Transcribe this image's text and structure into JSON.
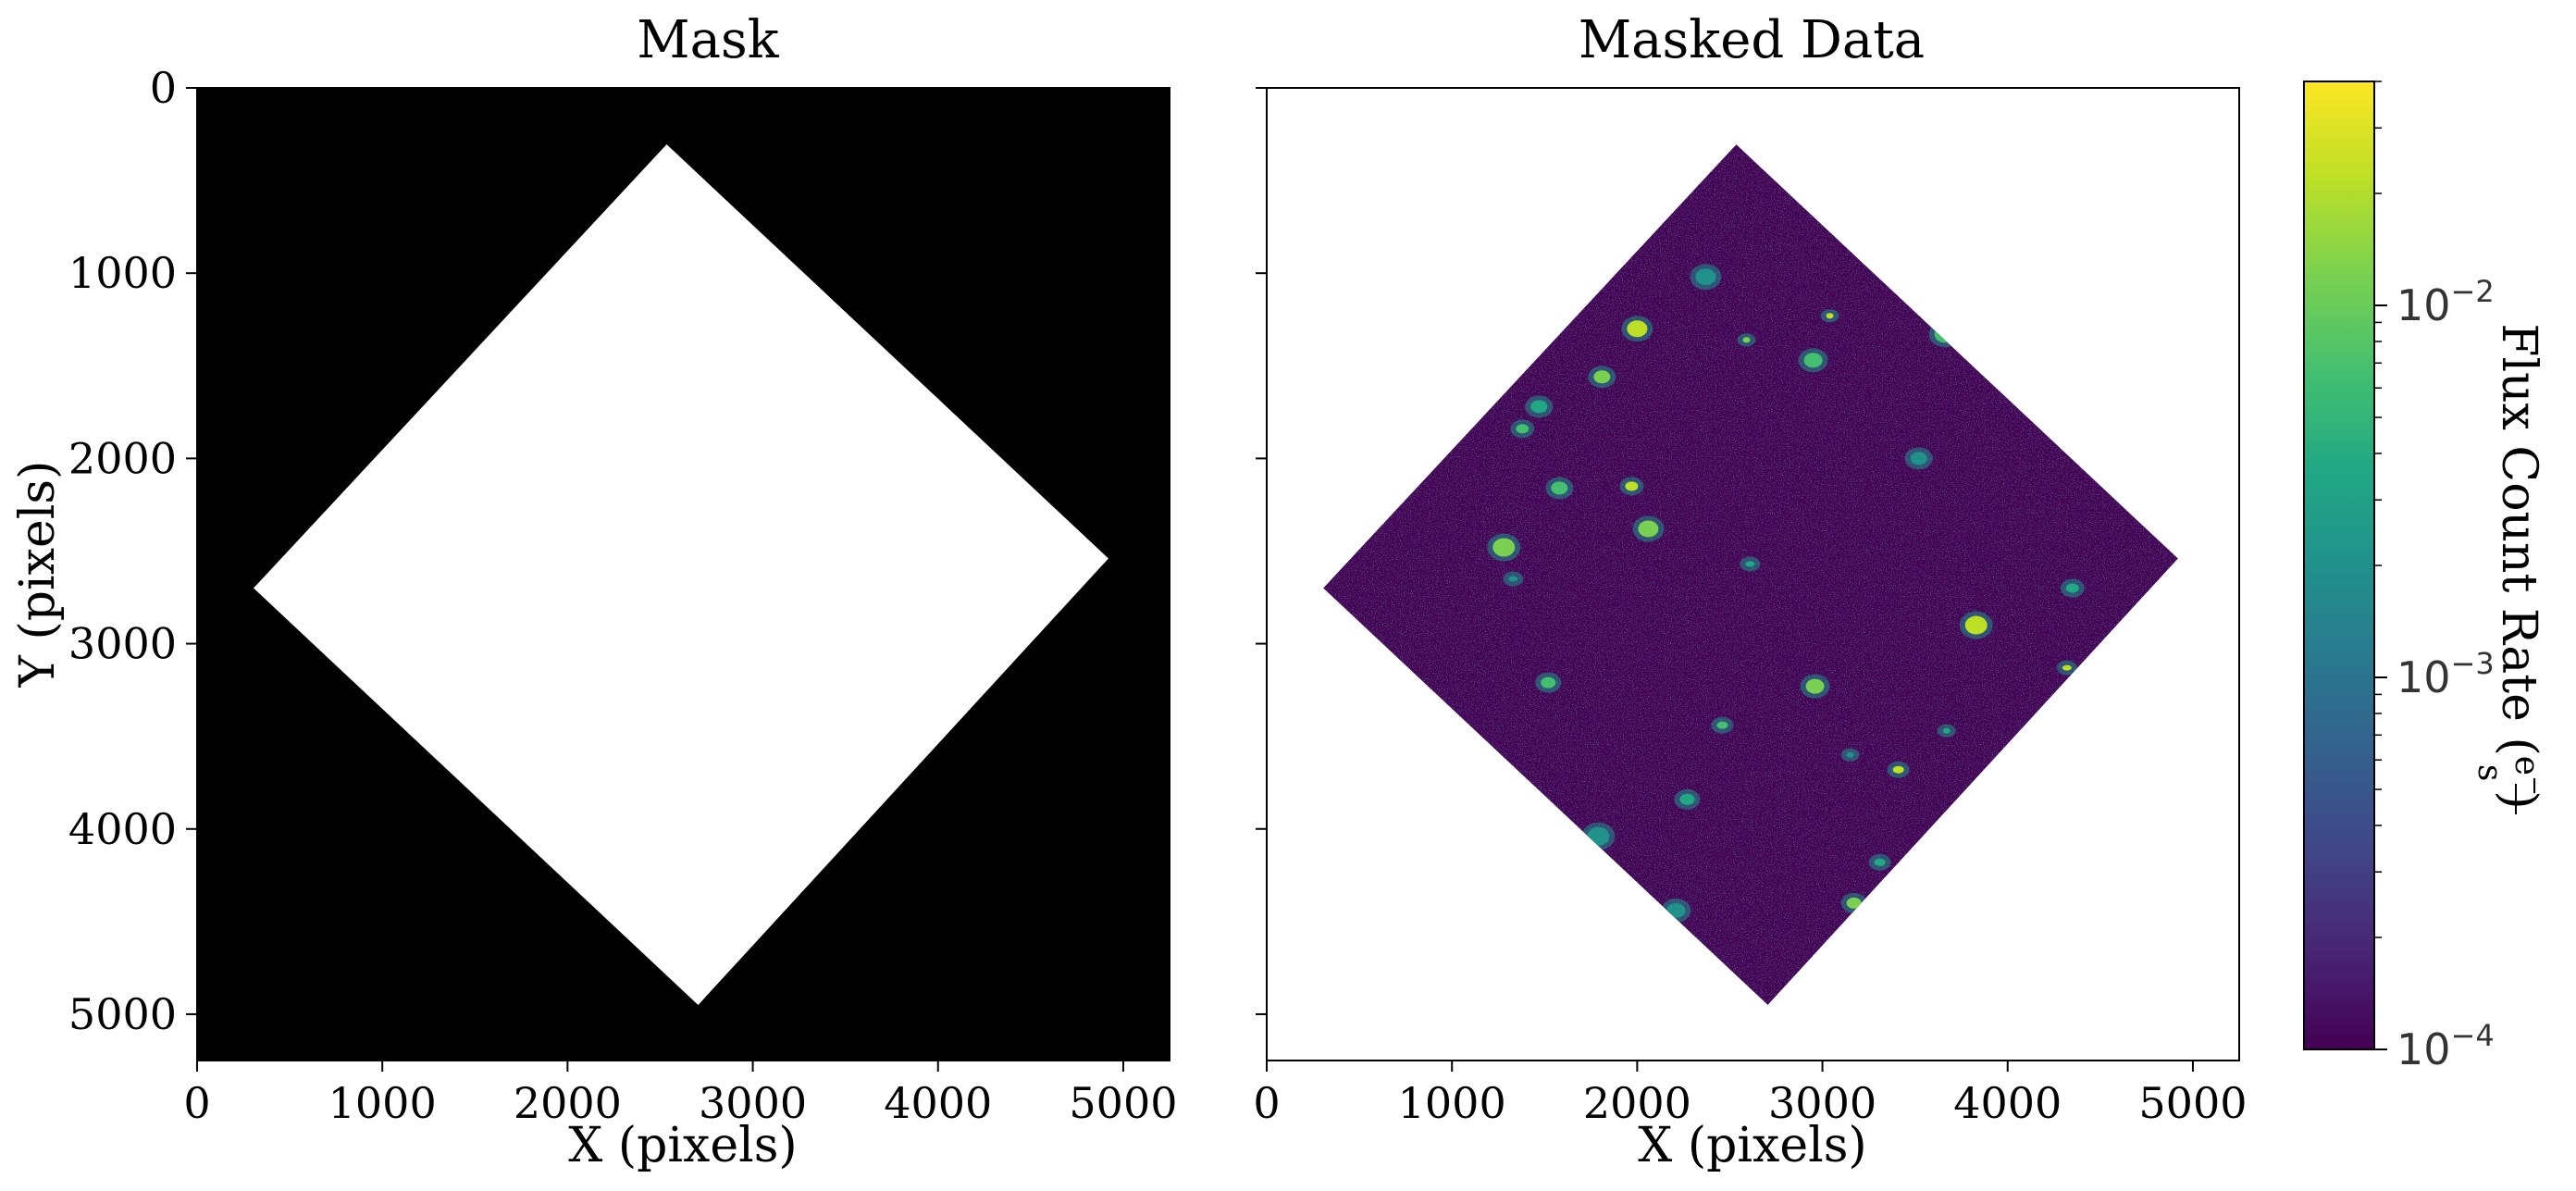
{
  "chart_data": [
    {
      "type": "heatmap",
      "panel": "mask",
      "title": "Mask",
      "xlabel": "X (pixels)",
      "ylabel": "Y (pixels)",
      "xlim": [
        0,
        5250
      ],
      "ylim": [
        5250,
        0
      ],
      "xticks": [
        "0",
        "1000",
        "2000",
        "3000",
        "4000",
        "5000"
      ],
      "yticks": [
        "0",
        "1000",
        "2000",
        "3000",
        "4000",
        "5000"
      ],
      "colormap": "gray",
      "background_color": "#000000",
      "region_color": "#ffffff",
      "region_vertices": [
        [
          2535,
          305
        ],
        [
          4920,
          2540
        ],
        [
          2705,
          4950
        ],
        [
          305,
          2700
        ]
      ]
    },
    {
      "type": "heatmap",
      "panel": "masked-data",
      "title": "Masked Data",
      "xlabel": "X (pixels)",
      "ylabel": "",
      "xlim": [
        0,
        5250
      ],
      "ylim": [
        5250,
        0
      ],
      "xticks": [
        "0",
        "1000",
        "2000",
        "3000",
        "4000",
        "5000"
      ],
      "yticks_labeled": false,
      "colormap": "viridis",
      "color_scale": "log",
      "color_range": [
        0.0001,
        0.04
      ],
      "colorbar_label": "Flux Count Rate (",
      "colorbar_unit_num": "e",
      "colorbar_unit_sup": "−",
      "colorbar_unit_den": "s",
      "colorbar_label_end": ")",
      "colorbar_ticks": [
        {
          "base": "10",
          "exp": "−2",
          "value": 0.01
        },
        {
          "base": "10",
          "exp": "−3",
          "value": 0.001
        },
        {
          "base": "10",
          "exp": "−4",
          "value": 0.0001
        }
      ],
      "region_vertices": [
        [
          2535,
          305
        ],
        [
          4920,
          2540
        ],
        [
          2705,
          4950
        ],
        [
          305,
          2700
        ]
      ],
      "bright_sources": [
        [
          2590,
          1360
        ],
        [
          3660,
          1330
        ],
        [
          1470,
          1720
        ],
        [
          1970,
          2150
        ],
        [
          1330,
          2650
        ],
        [
          1280,
          2480
        ],
        [
          2950,
          1470
        ],
        [
          2270,
          3840
        ],
        [
          3410,
          3680
        ],
        [
          3150,
          3600
        ],
        [
          2060,
          2380
        ],
        [
          1580,
          2160
        ],
        [
          4350,
          2700
        ],
        [
          4320,
          3130
        ],
        [
          1790,
          4040
        ],
        [
          2960,
          3230
        ],
        [
          1520,
          3210
        ],
        [
          3310,
          4180
        ],
        [
          3040,
          1230
        ],
        [
          2370,
          1020
        ],
        [
          1810,
          1560
        ],
        [
          1380,
          1840
        ],
        [
          2610,
          2570
        ],
        [
          3830,
          2900
        ],
        [
          2210,
          4440
        ],
        [
          3170,
          4400
        ],
        [
          2460,
          3440
        ],
        [
          3670,
          3470
        ],
        [
          2000,
          1300
        ],
        [
          3520,
          2000
        ]
      ],
      "background_level": 0.00012
    }
  ]
}
